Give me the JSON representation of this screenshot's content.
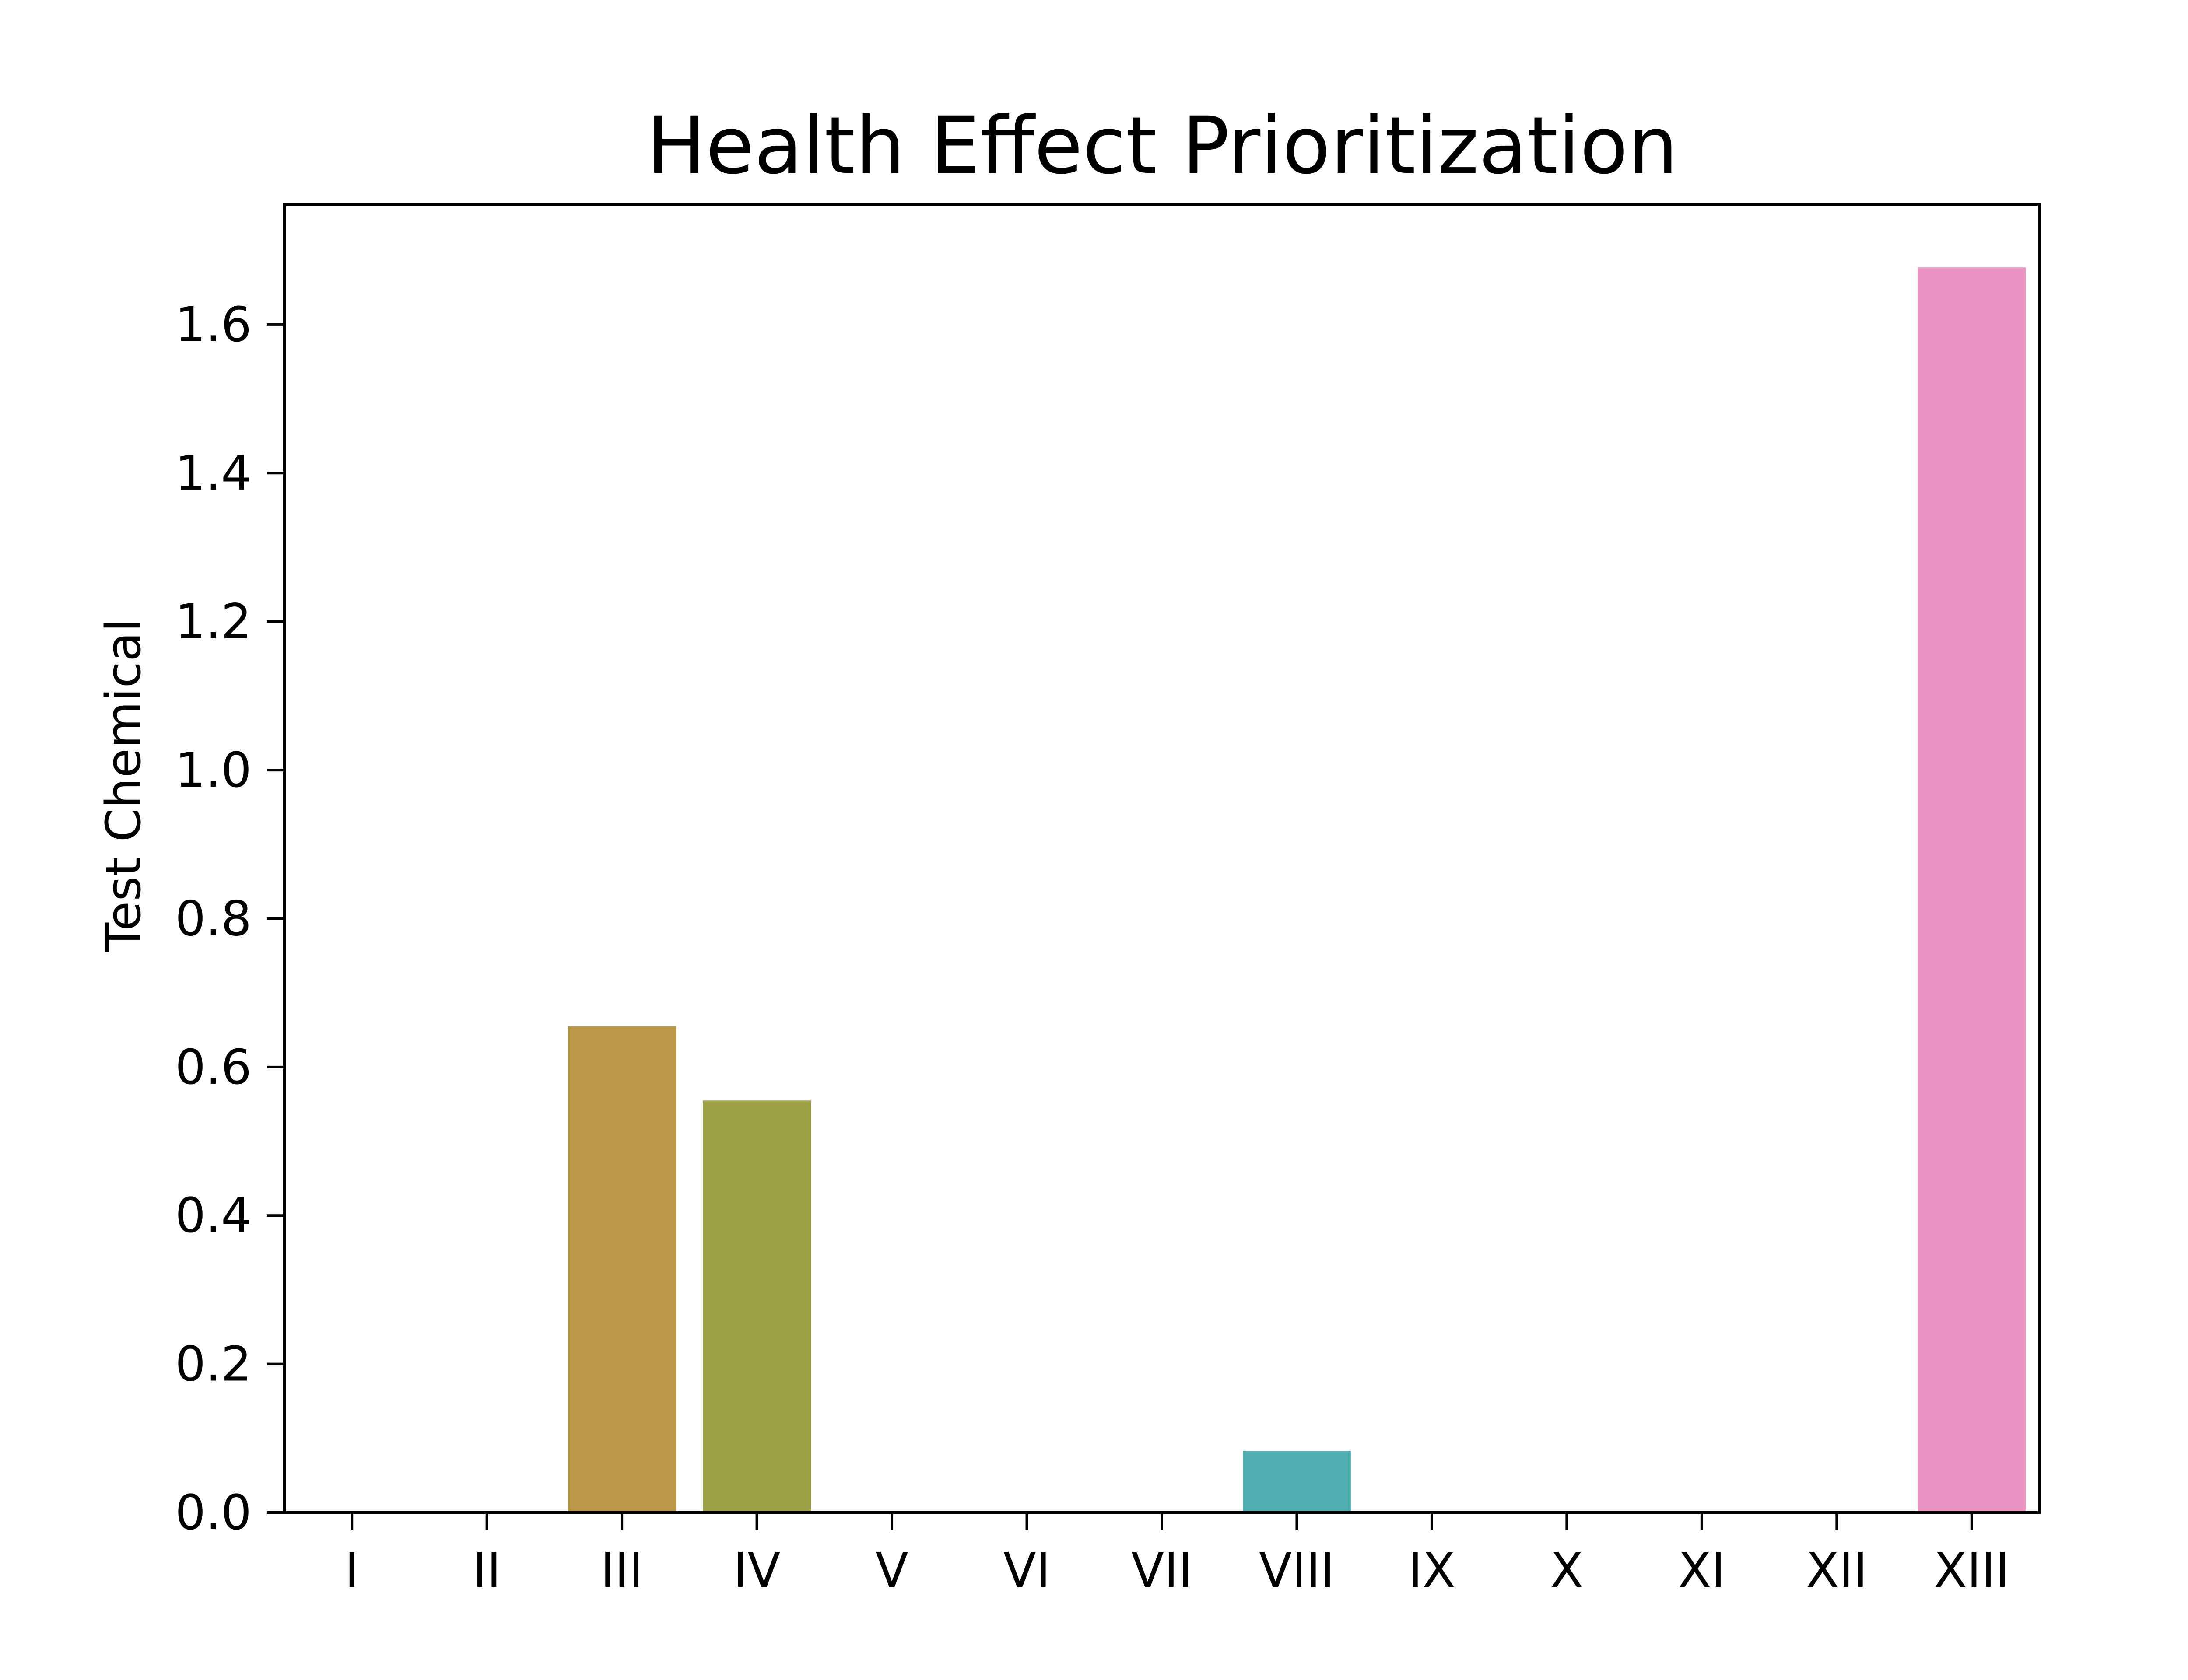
{
  "chart_data": {
    "type": "bar",
    "title": "Health Effect Prioritization",
    "xlabel": "",
    "ylabel": "Test Chemical",
    "categories": [
      "I",
      "II",
      "III",
      "IV",
      "V",
      "VI",
      "VII",
      "VIII",
      "IX",
      "X",
      "XI",
      "XII",
      "XIII"
    ],
    "values": [
      0,
      0,
      0.655,
      0.555,
      0,
      0,
      0,
      0.083,
      0,
      0,
      0,
      0,
      1.677
    ],
    "colors": [
      "#f77189",
      "#e68332",
      "#bb9847",
      "#9ea144",
      "#7eab3b",
      "#33b07a",
      "#35ad9c",
      "#4faeb0",
      "#38a9c5",
      "#6e9af4",
      "#a48cf4",
      "#db75f2",
      "#e993c2"
    ],
    "ylim": [
      0,
      1.762
    ],
    "yticks": [
      "0.0",
      "0.2",
      "0.4",
      "0.6",
      "0.8",
      "1.0",
      "1.2",
      "1.4",
      "1.6"
    ],
    "grid": false,
    "legend": "none"
  }
}
